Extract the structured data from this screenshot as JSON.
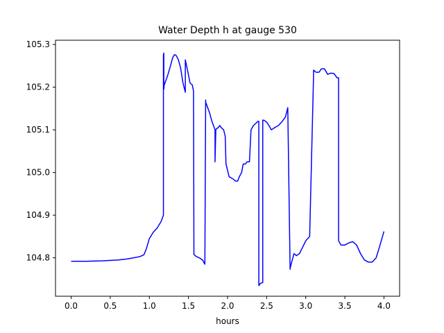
{
  "chart_data": {
    "type": "line",
    "title": "Water Depth h at gauge 530",
    "xlabel": "hours",
    "ylabel": "",
    "xlim": [
      -0.2,
      4.2
    ],
    "ylim": [
      104.71,
      105.31
    ],
    "xticks": [
      0.0,
      0.5,
      1.0,
      1.5,
      2.0,
      2.5,
      3.0,
      3.5,
      4.0
    ],
    "xtick_labels": [
      "0.0",
      "0.5",
      "1.0",
      "1.5",
      "2.0",
      "2.5",
      "3.0",
      "3.5",
      "4.0"
    ],
    "yticks": [
      104.8,
      104.9,
      105.0,
      105.1,
      105.2,
      105.3
    ],
    "ytick_labels": [
      "104.8",
      "104.9",
      "105.0",
      "105.1",
      "105.2",
      "105.3"
    ],
    "grid": false,
    "line_color": "#0000ff",
    "series": [
      {
        "x": [
          0.0,
          0.2,
          0.4,
          0.6,
          0.7,
          0.8,
          0.88,
          0.93,
          0.96,
          1.0,
          1.05,
          1.1,
          1.15,
          1.18,
          1.18,
          1.185,
          1.185,
          1.19,
          1.2,
          1.23,
          1.27,
          1.3,
          1.32,
          1.34,
          1.37,
          1.4,
          1.43,
          1.46,
          1.46,
          1.49,
          1.52,
          1.55,
          1.565,
          1.57,
          1.6,
          1.64,
          1.68,
          1.71,
          1.72,
          1.72,
          1.74,
          1.77,
          1.8,
          1.82,
          1.84,
          1.84,
          1.85,
          1.86,
          1.88,
          1.9,
          1.92,
          1.95,
          1.97,
          1.98,
          1.98,
          2.02,
          2.07,
          2.1,
          2.13,
          2.15,
          2.18,
          2.2,
          2.23,
          2.25,
          2.28,
          2.3,
          2.3,
          2.33,
          2.36,
          2.39,
          2.4,
          2.4,
          2.42,
          2.45,
          2.45,
          2.47,
          2.5,
          2.53,
          2.56,
          2.6,
          2.65,
          2.7,
          2.74,
          2.77,
          2.8,
          2.8,
          2.82,
          2.85,
          2.88,
          2.92,
          2.96,
          3.0,
          3.05,
          3.1,
          3.1,
          3.13,
          3.17,
          3.2,
          3.24,
          3.28,
          3.32,
          3.36,
          3.4,
          3.42,
          3.42,
          3.45,
          3.5,
          3.55,
          3.6,
          3.65,
          3.7,
          3.75,
          3.8,
          3.85,
          3.9,
          3.95,
          4.0
        ],
        "y": [
          104.792,
          104.792,
          104.793,
          104.795,
          104.797,
          104.8,
          104.803,
          104.807,
          104.82,
          104.845,
          104.86,
          104.87,
          104.885,
          104.9,
          105.275,
          105.28,
          105.195,
          105.205,
          105.21,
          105.225,
          105.25,
          105.27,
          105.276,
          105.275,
          105.265,
          105.245,
          105.21,
          105.188,
          105.264,
          105.238,
          105.21,
          105.205,
          105.19,
          104.808,
          104.803,
          104.8,
          104.795,
          104.785,
          105.17,
          105.165,
          105.155,
          105.14,
          105.12,
          105.11,
          105.1,
          105.025,
          105.1,
          105.103,
          105.105,
          105.11,
          105.105,
          105.1,
          105.085,
          105.02,
          105.02,
          104.99,
          104.985,
          104.98,
          104.98,
          104.99,
          105.0,
          105.02,
          105.02,
          105.025,
          105.025,
          105.1,
          105.1,
          105.11,
          105.115,
          105.12,
          105.12,
          104.735,
          104.74,
          104.742,
          105.123,
          105.122,
          105.118,
          105.11,
          105.1,
          105.105,
          105.11,
          105.12,
          105.13,
          105.152,
          104.773,
          104.775,
          104.79,
          104.81,
          104.805,
          104.81,
          104.825,
          104.84,
          104.85,
          105.23,
          105.24,
          105.235,
          105.235,
          105.243,
          105.243,
          105.23,
          105.233,
          105.232,
          105.222,
          105.222,
          104.84,
          104.83,
          104.83,
          104.835,
          104.838,
          104.83,
          104.81,
          104.795,
          104.79,
          104.79,
          104.8,
          104.83,
          104.862
        ]
      }
    ]
  }
}
